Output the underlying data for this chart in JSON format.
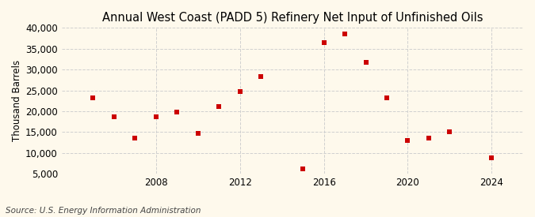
{
  "title": "Annual West Coast (PADD 5) Refinery Net Input of Unfinished Oils",
  "ylabel": "Thousand Barrels",
  "source": "Source: U.S. Energy Information Administration",
  "background_color": "#fef9ec",
  "dot_color": "#cc0000",
  "years": [
    2005,
    2006,
    2007,
    2008,
    2009,
    2010,
    2011,
    2012,
    2013,
    2015,
    2016,
    2017,
    2018,
    2019,
    2020,
    2021,
    2022,
    2024
  ],
  "values": [
    23200,
    18700,
    13500,
    18700,
    19800,
    14700,
    21200,
    24700,
    28300,
    6200,
    36500,
    38500,
    31800,
    23200,
    13000,
    13500,
    15100,
    8800
  ],
  "ylim": [
    5000,
    40000
  ],
  "yticks": [
    5000,
    10000,
    15000,
    20000,
    25000,
    30000,
    35000,
    40000
  ],
  "xticks": [
    2008,
    2012,
    2016,
    2020,
    2024
  ],
  "xlim": [
    2003.5,
    2025.5
  ],
  "grid_color": "#d0d0d0",
  "title_fontsize": 10.5,
  "axis_fontsize": 8.5,
  "marker_size": 22
}
